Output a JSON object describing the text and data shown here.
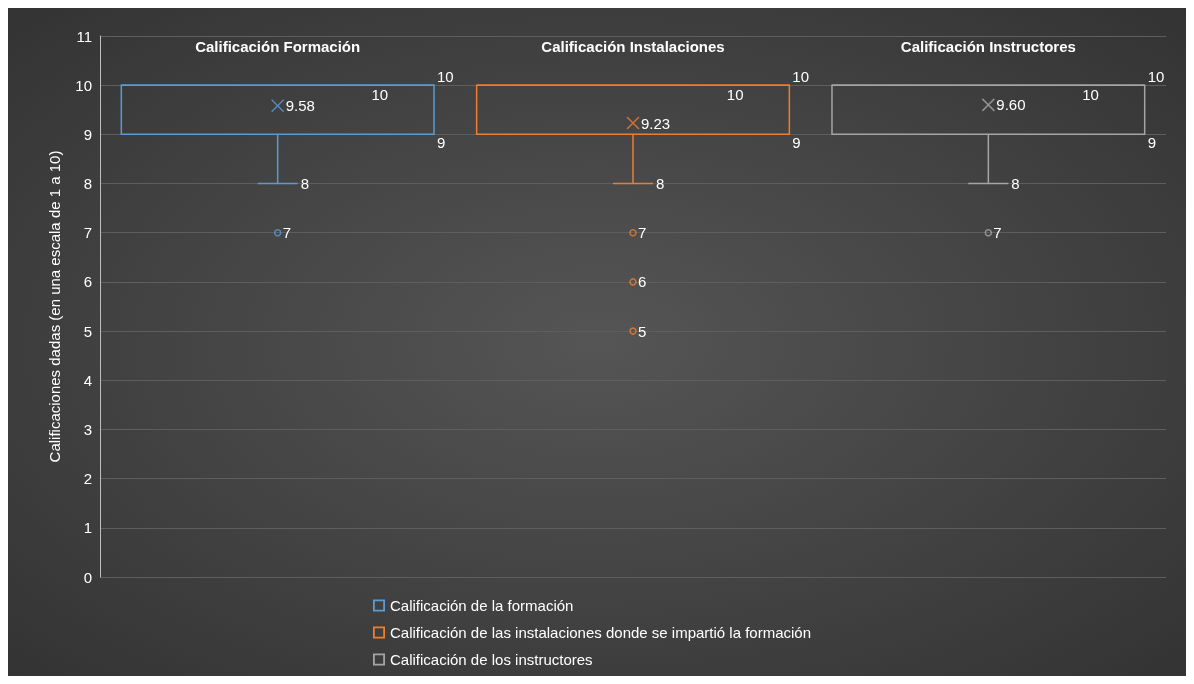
{
  "chart_data": {
    "type": "box",
    "ylabel": "Calificaciones dadas (en una escala de 1 a 10)",
    "categories": [
      "Calificación Formación",
      "Calificación Instalaciones",
      "Calificación Instructores"
    ],
    "series": [
      {
        "name": "Calificación de la formación",
        "color": "#5b9bd5",
        "boxes": [
          {
            "low": 8,
            "q1": 9,
            "median": 10,
            "q3": 10,
            "high": 10,
            "mean": 9.58,
            "outliers": [
              7
            ]
          },
          null,
          null
        ]
      },
      {
        "name": "Calificación de las instalaciones donde se impartió la formación",
        "color": "#ed7d31",
        "boxes": [
          null,
          {
            "low": 8,
            "q1": 9,
            "median": 10,
            "q3": 10,
            "high": 10,
            "mean": 9.23,
            "outliers": [
              7,
              6,
              5
            ]
          },
          null
        ]
      },
      {
        "name": "Calificación de los instructores",
        "color": "#a5a5a5",
        "boxes": [
          null,
          null,
          {
            "low": 8,
            "q1": 9,
            "median": 10,
            "q3": 10,
            "high": 10,
            "mean": 9.6,
            "outliers": [
              7
            ]
          }
        ]
      }
    ],
    "annotations": [
      "8",
      "9",
      "10",
      "10",
      "9.58",
      "7",
      "8",
      "9",
      "10",
      "10",
      "9.23",
      "7",
      "6",
      "5",
      "8",
      "9",
      "10",
      "10",
      "9.60",
      "7"
    ],
    "ylim": [
      0,
      11
    ],
    "yticks": [
      0,
      1,
      2,
      3,
      4,
      5,
      6,
      7,
      8,
      9,
      10,
      11
    ],
    "grid": "y",
    "legend": "bottom",
    "marker": "circle"
  }
}
